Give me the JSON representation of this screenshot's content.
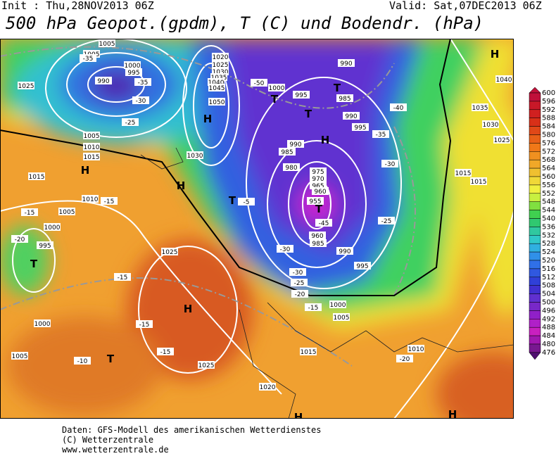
{
  "header": {
    "init": "Init : Thu,28NOV2013 06Z",
    "valid": "Valid: Sat,07DEC2013 06Z",
    "title": "500 hPa Geopot.(gpdm), T (C) und Bodendr. (hPa)"
  },
  "legend": {
    "levels": [
      "600",
      "596",
      "592",
      "588",
      "584",
      "580",
      "576",
      "572",
      "568",
      "564",
      "560",
      "556",
      "552",
      "548",
      "544",
      "540",
      "536",
      "532",
      "528",
      "524",
      "520",
      "516",
      "512",
      "508",
      "504",
      "500",
      "496",
      "492",
      "488",
      "484",
      "480",
      "476"
    ]
  },
  "map": {
    "labels": [
      "H",
      "H",
      "H",
      "H",
      "H",
      "H",
      "H",
      "H",
      "T",
      "T",
      "T",
      "T",
      "T",
      "T",
      "T",
      "1005",
      "1005",
      "1000",
      "995",
      "990",
      "-35",
      "-30",
      "-25",
      "1025",
      "-35",
      "1020",
      "1025",
      "1030",
      "1035",
      "1040",
      "1045",
      "1050",
      "1030",
      "1005",
      "1010",
      "1015",
      "1015",
      "1010",
      "-15",
      "1005",
      "-15",
      "1000",
      "995",
      "-20",
      "1025",
      "-15",
      "-15",
      "-15",
      "-10",
      "1025",
      "1020",
      "1000",
      "1005",
      "-5",
      "1000",
      "-50",
      "995",
      "990",
      "985",
      "990",
      "995",
      "990",
      "985",
      "980",
      "975",
      "970",
      "965",
      "960",
      "955",
      "-45",
      "960",
      "985",
      "990",
      "995",
      "-30",
      "-30",
      "-25",
      "-20",
      "-15",
      "1000",
      "1005",
      "1015",
      "1010",
      "-20",
      "1015",
      "1015",
      "1035",
      "1030",
      "1025",
      "1040",
      "-40",
      "-35",
      "-30",
      "-25"
    ]
  },
  "footer": {
    "lines": [
      "Daten: GFS-Modell des amerikanischen Wetterdienstes",
      "(C) Wetterzentrale",
      "www.wetterzentrale.de"
    ]
  }
}
